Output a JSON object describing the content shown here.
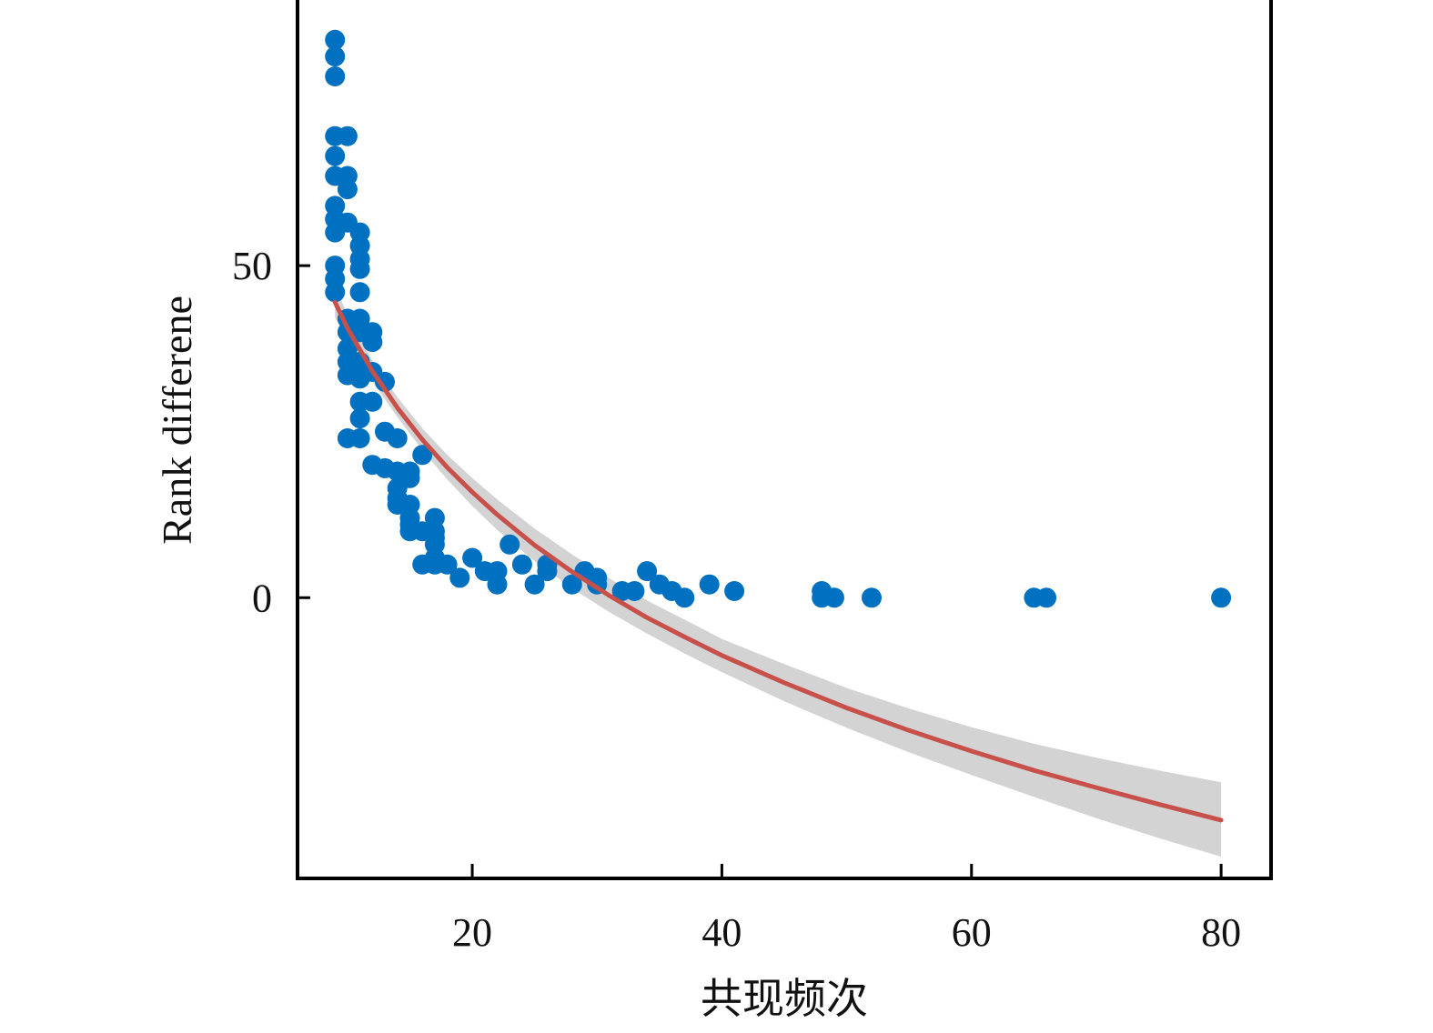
{
  "chart_data": {
    "type": "scatter",
    "title": "",
    "xlabel": "共现频次",
    "ylabel": "Rank differene",
    "xlim": [
      6,
      84
    ],
    "ylim": [
      -42,
      90
    ],
    "xticks": [
      20,
      40,
      60,
      80
    ],
    "yticks": [
      0,
      50
    ],
    "grid": false,
    "legend": "none",
    "colors": {
      "points": "#0070c0",
      "fit": "#c8504b",
      "band": "#d3d3d3",
      "axes": "#000000"
    },
    "series": [
      {
        "kind": "scatter",
        "points": [
          [
            9,
            84
          ],
          [
            9,
            81.5
          ],
          [
            9,
            78.5
          ],
          [
            9,
            69.5
          ],
          [
            9,
            66.5
          ],
          [
            9,
            63.5
          ],
          [
            9,
            59
          ],
          [
            9,
            57
          ],
          [
            9,
            55
          ],
          [
            9,
            50
          ],
          [
            9,
            48
          ],
          [
            9,
            46
          ],
          [
            10,
            69.5
          ],
          [
            10,
            63.5
          ],
          [
            10,
            61.5
          ],
          [
            10,
            56.5
          ],
          [
            10,
            42
          ],
          [
            10,
            40
          ],
          [
            10,
            37.5
          ],
          [
            10,
            35.5
          ],
          [
            10,
            33.5
          ],
          [
            10,
            24
          ],
          [
            11,
            55
          ],
          [
            11,
            53
          ],
          [
            11,
            51
          ],
          [
            11,
            49.5
          ],
          [
            11,
            46
          ],
          [
            11,
            42
          ],
          [
            11,
            40
          ],
          [
            11,
            35.5
          ],
          [
            11,
            33
          ],
          [
            11,
            29.5
          ],
          [
            11,
            27
          ],
          [
            11,
            24
          ],
          [
            12,
            40
          ],
          [
            12,
            38.5
          ],
          [
            12,
            34
          ],
          [
            12,
            29.5
          ],
          [
            12,
            20
          ],
          [
            13,
            32.5
          ],
          [
            13,
            25
          ],
          [
            13,
            19.5
          ],
          [
            14,
            24
          ],
          [
            14,
            19
          ],
          [
            14,
            16.5
          ],
          [
            14,
            15
          ],
          [
            14,
            14
          ],
          [
            15,
            19
          ],
          [
            15,
            18
          ],
          [
            15,
            14
          ],
          [
            15,
            12
          ],
          [
            15,
            11
          ],
          [
            15,
            10
          ],
          [
            16,
            21.5
          ],
          [
            16,
            10
          ],
          [
            16,
            5
          ],
          [
            17,
            12
          ],
          [
            17,
            10
          ],
          [
            17,
            9
          ],
          [
            17,
            8
          ],
          [
            17,
            6
          ],
          [
            17,
            5
          ],
          [
            18,
            5
          ],
          [
            19,
            3
          ],
          [
            20,
            6
          ],
          [
            21,
            4
          ],
          [
            22,
            4
          ],
          [
            22,
            2
          ],
          [
            23,
            8
          ],
          [
            24,
            5
          ],
          [
            25,
            2
          ],
          [
            26,
            4
          ],
          [
            26,
            5
          ],
          [
            28,
            2
          ],
          [
            29,
            4
          ],
          [
            30,
            3
          ],
          [
            30,
            2
          ],
          [
            32,
            1
          ],
          [
            33,
            1
          ],
          [
            34,
            4
          ],
          [
            35,
            2
          ],
          [
            36,
            1
          ],
          [
            37,
            0
          ],
          [
            39,
            2
          ],
          [
            41,
            1
          ],
          [
            48,
            1
          ],
          [
            48,
            0
          ],
          [
            49,
            0
          ],
          [
            52,
            0
          ],
          [
            65,
            0
          ],
          [
            66,
            0
          ],
          [
            80,
            0
          ]
        ]
      },
      {
        "kind": "fit",
        "x": [
          9,
          10,
          12,
          14,
          16,
          18,
          20,
          22,
          25,
          28,
          31,
          34,
          37,
          40,
          45,
          50,
          55,
          60,
          65,
          70,
          75,
          80
        ],
        "y": [
          44.5,
          40.6,
          34.1,
          28.6,
          23.8,
          19.6,
          15.9,
          12.5,
          7.9,
          3.9,
          0.3,
          -3,
          -5.9,
          -8.7,
          -12.8,
          -16.6,
          -20,
          -23.1,
          -26,
          -28.6,
          -31.1,
          -33.5
        ],
        "lower": [
          42.2,
          38.7,
          32.6,
          27.2,
          22.2,
          17.8,
          13.8,
          10.2,
          5.5,
          1.4,
          -2.2,
          -5.4,
          -8.4,
          -11.2,
          -15.6,
          -19.6,
          -23.3,
          -26.7,
          -30,
          -33.2,
          -36.2,
          -39
        ],
        "upper": [
          46.8,
          42.7,
          35.7,
          30.2,
          25.5,
          21.5,
          18,
          14.8,
          10.4,
          6.5,
          2.9,
          -0.4,
          -3.3,
          -6.2,
          -10,
          -13.6,
          -16.7,
          -19.5,
          -22,
          -24.1,
          -26,
          -27.8
        ]
      }
    ]
  }
}
